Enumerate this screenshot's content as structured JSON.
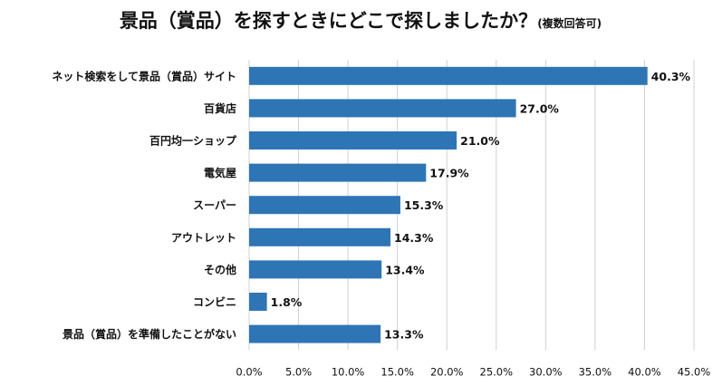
{
  "chart_data": {
    "type": "bar",
    "orientation": "horizontal",
    "title": "景品（賞品）を探すときにどこで探しましたか？",
    "title_note": "(複数回答可)",
    "categories": [
      "ネット検索をして景品（賞品）サイト",
      "百貨店",
      "百円均一ショップ",
      "電気屋",
      "スーパー",
      "アウトレット",
      "その他",
      "コンビニ",
      "景品（賞品）を準備したことがない"
    ],
    "values": [
      40.3,
      27.0,
      21.0,
      17.9,
      15.3,
      14.3,
      13.4,
      1.8,
      13.3
    ],
    "value_labels": [
      "40.3%",
      "27.0%",
      "21.0%",
      "17.9%",
      "15.3%",
      "14.3%",
      "13.4%",
      "1.8%",
      "13.3%"
    ],
    "x_ticks": [
      "0.0%",
      "5.0%",
      "10.0%",
      "15.0%",
      "20.0%",
      "25.0%",
      "30.0%",
      "35.0%",
      "40.0%",
      "45.0%"
    ],
    "xlim": [
      0,
      45
    ],
    "grid": true,
    "legend": "none",
    "bar_color": "#2E75B6",
    "grid_color": "#D0D0D0"
  }
}
